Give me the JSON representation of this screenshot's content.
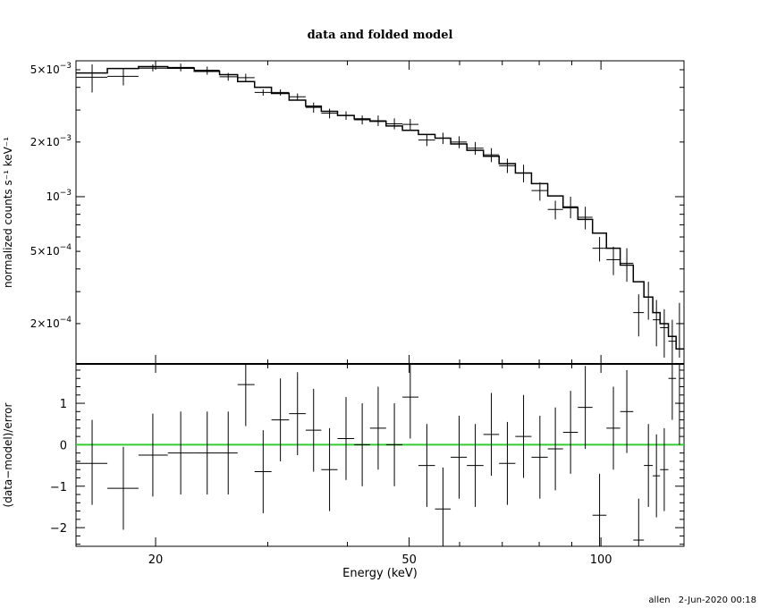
{
  "title": "data and folded model",
  "footer": {
    "user": "allen",
    "datetime": "2-Jun-2020 00:18"
  },
  "colors": {
    "data": "#000000",
    "model": "#000000",
    "zero_line": "#33cc33"
  },
  "chart_data": [
    {
      "type": "line",
      "panel": "top",
      "xscale": "log",
      "yscale": "log",
      "xlim": [
        15,
        135
      ],
      "ylim": [
        0.00012,
        0.0056
      ],
      "ylabel": "normalized counts s⁻¹ keV⁻¹",
      "yticks": [
        {
          "v": 0.005,
          "m": "5",
          "e": "−3"
        },
        {
          "v": 0.002,
          "m": "2",
          "e": "−3"
        },
        {
          "v": 0.001,
          "m": "",
          "e": "−3"
        },
        {
          "v": 0.0005,
          "m": "5",
          "e": "−4"
        },
        {
          "v": 0.0002,
          "m": "2",
          "e": "−4"
        }
      ],
      "series": [
        {
          "kind": "data",
          "points": [
            {
              "x": 15.9,
              "xl": 15.0,
              "xh": 16.8,
              "y": 0.00455,
              "yl": 0.00375,
              "yh": 0.00535
            },
            {
              "x": 17.8,
              "xl": 16.8,
              "xh": 18.8,
              "y": 0.0046,
              "yl": 0.0041,
              "yh": 0.0051
            },
            {
              "x": 19.8,
              "xl": 18.8,
              "xh": 20.9,
              "y": 0.0051,
              "yl": 0.0049,
              "yh": 0.00535
            },
            {
              "x": 21.9,
              "xl": 20.9,
              "xh": 23.0,
              "y": 0.00515,
              "yl": 0.0049,
              "yh": 0.0054
            },
            {
              "x": 24.1,
              "xl": 23.0,
              "xh": 25.2,
              "y": 0.00497,
              "yl": 0.0047,
              "yh": 0.0052
            },
            {
              "x": 26.0,
              "xl": 25.2,
              "xh": 26.9,
              "y": 0.00457,
              "yl": 0.00435,
              "yh": 0.0048
            },
            {
              "x": 27.7,
              "xl": 26.9,
              "xh": 28.6,
              "y": 0.00452,
              "yl": 0.0043,
              "yh": 0.00475
            },
            {
              "x": 29.5,
              "xl": 28.6,
              "xh": 30.4,
              "y": 0.00375,
              "yl": 0.0036,
              "yh": 0.0039
            },
            {
              "x": 31.4,
              "xl": 30.4,
              "xh": 32.4,
              "y": 0.00375,
              "yl": 0.0036,
              "yh": 0.0039
            },
            {
              "x": 33.4,
              "xl": 32.4,
              "xh": 34.4,
              "y": 0.00355,
              "yl": 0.0034,
              "yh": 0.0037
            },
            {
              "x": 35.4,
              "xl": 34.4,
              "xh": 36.4,
              "y": 0.0031,
              "yl": 0.0029,
              "yh": 0.0033
            },
            {
              "x": 37.5,
              "xl": 36.4,
              "xh": 38.6,
              "y": 0.00288,
              "yl": 0.0027,
              "yh": 0.00305
            },
            {
              "x": 39.8,
              "xl": 38.6,
              "xh": 41.0,
              "y": 0.0028,
              "yl": 0.00265,
              "yh": 0.00295
            },
            {
              "x": 42.2,
              "xl": 41.0,
              "xh": 43.4,
              "y": 0.00265,
              "yl": 0.0025,
              "yh": 0.0028
            },
            {
              "x": 44.7,
              "xl": 43.4,
              "xh": 46.0,
              "y": 0.00262,
              "yl": 0.00245,
              "yh": 0.0028
            },
            {
              "x": 47.4,
              "xl": 46.0,
              "xh": 48.8,
              "y": 0.00252,
              "yl": 0.00235,
              "yh": 0.0027
            },
            {
              "x": 50.2,
              "xl": 48.8,
              "xh": 51.7,
              "y": 0.0025,
              "yl": 0.00232,
              "yh": 0.00268
            },
            {
              "x": 53.3,
              "xl": 51.7,
              "xh": 54.9,
              "y": 0.00205,
              "yl": 0.0019,
              "yh": 0.0022
            },
            {
              "x": 56.5,
              "xl": 54.9,
              "xh": 58.1,
              "y": 0.0021,
              "yl": 0.00195,
              "yh": 0.00225
            },
            {
              "x": 59.9,
              "xl": 58.1,
              "xh": 61.6,
              "y": 0.002,
              "yl": 0.00185,
              "yh": 0.00215
            },
            {
              "x": 63.5,
              "xl": 61.6,
              "xh": 65.4,
              "y": 0.00185,
              "yl": 0.0017,
              "yh": 0.002
            },
            {
              "x": 67.3,
              "xl": 65.4,
              "xh": 69.2,
              "y": 0.0017,
              "yl": 0.00155,
              "yh": 0.00185
            },
            {
              "x": 71.3,
              "xl": 69.2,
              "xh": 73.4,
              "y": 0.00148,
              "yl": 0.00135,
              "yh": 0.00162
            },
            {
              "x": 75.6,
              "xl": 73.4,
              "xh": 77.8,
              "y": 0.00135,
              "yl": 0.0012,
              "yh": 0.0015
            },
            {
              "x": 80.2,
              "xl": 77.8,
              "xh": 82.5,
              "y": 0.00108,
              "yl": 0.00095,
              "yh": 0.0012
            },
            {
              "x": 84.8,
              "xl": 82.5,
              "xh": 87.2,
              "y": 0.00085,
              "yl": 0.00075,
              "yh": 0.00095
            },
            {
              "x": 89.6,
              "xl": 87.2,
              "xh": 92.0,
              "y": 0.00088,
              "yl": 0.00076,
              "yh": 0.001
            },
            {
              "x": 94.5,
              "xl": 92.0,
              "xh": 97.0,
              "y": 0.00077,
              "yl": 0.00066,
              "yh": 0.00088
            },
            {
              "x": 99.5,
              "xl": 97.0,
              "xh": 102.0,
              "y": 0.00052,
              "yl": 0.00044,
              "yh": 0.0006
            },
            {
              "x": 104.6,
              "xl": 102.0,
              "xh": 107.2,
              "y": 0.00045,
              "yl": 0.00037,
              "yh": 0.00053
            },
            {
              "x": 109.8,
              "xl": 107.2,
              "xh": 112.4,
              "y": 0.00043,
              "yl": 0.00034,
              "yh": 0.00052
            },
            {
              "x": 114.6,
              "xl": 112.4,
              "xh": 116.8,
              "y": 0.00023,
              "yl": 0.00017,
              "yh": 0.00029
            },
            {
              "x": 118.7,
              "xl": 116.8,
              "xh": 120.6,
              "y": 0.00028,
              "yl": 0.00021,
              "yh": 0.00034
            },
            {
              "x": 122.2,
              "xl": 120.6,
              "xh": 123.8,
              "y": 0.00021,
              "yl": 0.00015,
              "yh": 0.00027
            },
            {
              "x": 125.7,
              "xl": 123.8,
              "xh": 127.6,
              "y": 0.00019,
              "yl": 0.00013,
              "yh": 0.00024
            },
            {
              "x": 129.4,
              "xl": 127.6,
              "xh": 131.2,
              "y": 0.00016,
              "yl": 0.00012,
              "yh": 0.00021
            },
            {
              "x": 132.8,
              "xl": 131.2,
              "xh": 134.4,
              "y": 0.0002,
              "yl": 0.00013,
              "yh": 0.00026
            }
          ]
        },
        {
          "kind": "model",
          "steps": [
            {
              "x0": 15.0,
              "x1": 16.8,
              "y": 0.0048
            },
            {
              "x0": 16.8,
              "x1": 18.8,
              "y": 0.00508
            },
            {
              "x0": 18.8,
              "x1": 20.9,
              "y": 0.0052
            },
            {
              "x0": 20.9,
              "x1": 23.0,
              "y": 0.0051
            },
            {
              "x0": 23.0,
              "x1": 25.2,
              "y": 0.0049
            },
            {
              "x0": 25.2,
              "x1": 26.9,
              "y": 0.0047
            },
            {
              "x0": 26.9,
              "x1": 28.6,
              "y": 0.0043
            },
            {
              "x0": 28.6,
              "x1": 30.4,
              "y": 0.004
            },
            {
              "x0": 30.4,
              "x1": 32.4,
              "y": 0.0037
            },
            {
              "x0": 32.4,
              "x1": 34.4,
              "y": 0.0034
            },
            {
              "x0": 34.4,
              "x1": 36.4,
              "y": 0.00315
            },
            {
              "x0": 36.4,
              "x1": 38.6,
              "y": 0.00295
            },
            {
              "x0": 38.6,
              "x1": 41.0,
              "y": 0.0028
            },
            {
              "x0": 41.0,
              "x1": 43.4,
              "y": 0.00268
            },
            {
              "x0": 43.4,
              "x1": 46.0,
              "y": 0.0026
            },
            {
              "x0": 46.0,
              "x1": 48.8,
              "y": 0.00245
            },
            {
              "x0": 48.8,
              "x1": 51.7,
              "y": 0.00232
            },
            {
              "x0": 51.7,
              "x1": 54.9,
              "y": 0.0022
            },
            {
              "x0": 54.9,
              "x1": 58.1,
              "y": 0.0021
            },
            {
              "x0": 58.1,
              "x1": 61.6,
              "y": 0.00195
            },
            {
              "x0": 61.6,
              "x1": 65.4,
              "y": 0.0018
            },
            {
              "x0": 65.4,
              "x1": 69.2,
              "y": 0.00167
            },
            {
              "x0": 69.2,
              "x1": 73.4,
              "y": 0.00152
            },
            {
              "x0": 73.4,
              "x1": 77.8,
              "y": 0.00135
            },
            {
              "x0": 77.8,
              "x1": 82.5,
              "y": 0.00118
            },
            {
              "x0": 82.5,
              "x1": 87.2,
              "y": 0.00101
            },
            {
              "x0": 87.2,
              "x1": 92.0,
              "y": 0.00087
            },
            {
              "x0": 92.0,
              "x1": 97.0,
              "y": 0.00075
            },
            {
              "x0": 97.0,
              "x1": 102.0,
              "y": 0.00063
            },
            {
              "x0": 102.0,
              "x1": 107.2,
              "y": 0.00052
            },
            {
              "x0": 107.2,
              "x1": 112.4,
              "y": 0.00042
            },
            {
              "x0": 112.4,
              "x1": 116.8,
              "y": 0.00034
            },
            {
              "x0": 116.8,
              "x1": 120.6,
              "y": 0.00028
            },
            {
              "x0": 120.6,
              "x1": 123.8,
              "y": 0.00023
            },
            {
              "x0": 123.8,
              "x1": 127.6,
              "y": 0.0002
            },
            {
              "x0": 127.6,
              "x1": 131.2,
              "y": 0.00017
            },
            {
              "x0": 131.2,
              "x1": 135.0,
              "y": 0.000145
            }
          ]
        }
      ]
    },
    {
      "type": "scatter",
      "panel": "bottom",
      "xscale": "log",
      "xlim": [
        15,
        135
      ],
      "ylim": [
        -2.45,
        1.95
      ],
      "ylabel": "(data−model)/error",
      "xlabel": "Energy (keV)",
      "xticks": [
        {
          "v": 20,
          "label": "20"
        },
        {
          "v": 50,
          "label": "50"
        },
        {
          "v": 100,
          "label": "100"
        }
      ],
      "yticks": [
        {
          "v": 1,
          "label": "1"
        },
        {
          "v": 0,
          "label": "0"
        },
        {
          "v": -1,
          "label": "−1"
        },
        {
          "v": -2,
          "label": "−2"
        }
      ],
      "zero_line": 0,
      "series": [
        {
          "kind": "residuals",
          "points": [
            {
              "x": 15.9,
              "xl": 15.0,
              "xh": 16.8,
              "y": -0.45,
              "yl": -1.45,
              "yh": 0.6
            },
            {
              "x": 17.8,
              "xl": 16.8,
              "xh": 18.8,
              "y": -1.05,
              "yl": -2.05,
              "yh": -0.05
            },
            {
              "x": 19.8,
              "xl": 18.8,
              "xh": 20.9,
              "y": -0.25,
              "yl": -1.25,
              "yh": 0.75
            },
            {
              "x": 21.9,
              "xl": 20.9,
              "xh": 23.0,
              "y": -0.2,
              "yl": -1.2,
              "yh": 0.8
            },
            {
              "x": 24.1,
              "xl": 23.0,
              "xh": 25.2,
              "y": -0.2,
              "yl": -1.2,
              "yh": 0.8
            },
            {
              "x": 26.0,
              "xl": 25.2,
              "xh": 26.9,
              "y": -0.2,
              "yl": -1.2,
              "yh": 0.8
            },
            {
              "x": 27.7,
              "xl": 26.9,
              "xh": 28.6,
              "y": 1.45,
              "yl": 0.45,
              "yh": 2.45
            },
            {
              "x": 29.5,
              "xl": 28.6,
              "xh": 30.4,
              "y": -0.65,
              "yl": -1.65,
              "yh": 0.35
            },
            {
              "x": 31.4,
              "xl": 30.4,
              "xh": 32.4,
              "y": 0.6,
              "yl": -0.4,
              "yh": 1.6
            },
            {
              "x": 33.4,
              "xl": 32.4,
              "xh": 34.4,
              "y": 0.75,
              "yl": -0.25,
              "yh": 1.75
            },
            {
              "x": 35.4,
              "xl": 34.4,
              "xh": 36.4,
              "y": 0.35,
              "yl": -0.65,
              "yh": 1.35
            },
            {
              "x": 37.5,
              "xl": 36.4,
              "xh": 38.6,
              "y": -0.6,
              "yl": -1.6,
              "yh": 0.4
            },
            {
              "x": 39.8,
              "xl": 38.6,
              "xh": 41.0,
              "y": 0.15,
              "yl": -0.85,
              "yh": 1.15
            },
            {
              "x": 42.2,
              "xl": 41.0,
              "xh": 43.4,
              "y": 0.0,
              "yl": -1.0,
              "yh": 1.0
            },
            {
              "x": 44.7,
              "xl": 43.4,
              "xh": 46.0,
              "y": 0.4,
              "yl": -0.6,
              "yh": 1.4
            },
            {
              "x": 47.4,
              "xl": 46.0,
              "xh": 48.8,
              "y": 0.0,
              "yl": -1.0,
              "yh": 1.0
            },
            {
              "x": 50.2,
              "xl": 48.8,
              "xh": 51.7,
              "y": 1.15,
              "yl": 0.15,
              "yh": 2.15
            },
            {
              "x": 53.3,
              "xl": 51.7,
              "xh": 54.9,
              "y": -0.5,
              "yl": -1.5,
              "yh": 0.5
            },
            {
              "x": 56.5,
              "xl": 54.9,
              "xh": 58.1,
              "y": -1.55,
              "yl": -2.55,
              "yh": -0.55
            },
            {
              "x": 59.9,
              "xl": 58.1,
              "xh": 61.6,
              "y": -0.3,
              "yl": -1.3,
              "yh": 0.7
            },
            {
              "x": 63.5,
              "xl": 61.6,
              "xh": 65.4,
              "y": -0.5,
              "yl": -1.5,
              "yh": 0.5
            },
            {
              "x": 67.3,
              "xl": 65.4,
              "xh": 69.2,
              "y": 0.25,
              "yl": -0.75,
              "yh": 1.25
            },
            {
              "x": 71.3,
              "xl": 69.2,
              "xh": 73.4,
              "y": -0.45,
              "yl": -1.45,
              "yh": 0.55
            },
            {
              "x": 75.6,
              "xl": 73.4,
              "xh": 77.8,
              "y": 0.2,
              "yl": -0.8,
              "yh": 1.2
            },
            {
              "x": 80.2,
              "xl": 77.8,
              "xh": 82.5,
              "y": -0.3,
              "yl": -1.3,
              "yh": 0.7
            },
            {
              "x": 84.8,
              "xl": 82.5,
              "xh": 87.2,
              "y": -0.1,
              "yl": -1.1,
              "yh": 0.9
            },
            {
              "x": 89.6,
              "xl": 87.2,
              "xh": 92.0,
              "y": 0.3,
              "yl": -0.7,
              "yh": 1.3
            },
            {
              "x": 94.5,
              "xl": 92.0,
              "xh": 97.0,
              "y": 0.9,
              "yl": -0.1,
              "yh": 1.9
            },
            {
              "x": 99.5,
              "xl": 97.0,
              "xh": 102.0,
              "y": -1.7,
              "yl": -2.7,
              "yh": -0.7
            },
            {
              "x": 104.6,
              "xl": 102.0,
              "xh": 107.2,
              "y": 0.4,
              "yl": -0.6,
              "yh": 1.4
            },
            {
              "x": 109.8,
              "xl": 107.2,
              "xh": 112.4,
              "y": 0.8,
              "yl": -0.2,
              "yh": 1.8
            },
            {
              "x": 114.6,
              "xl": 112.4,
              "xh": 116.8,
              "y": -2.3,
              "yl": -3.3,
              "yh": -1.3
            },
            {
              "x": 118.7,
              "xl": 116.8,
              "xh": 120.6,
              "y": -0.5,
              "yl": -1.5,
              "yh": 0.5
            },
            {
              "x": 122.2,
              "xl": 120.6,
              "xh": 123.8,
              "y": -0.75,
              "yl": -1.75,
              "yh": 0.25
            },
            {
              "x": 125.7,
              "xl": 123.8,
              "xh": 127.6,
              "y": -0.6,
              "yl": -1.6,
              "yh": 0.4
            },
            {
              "x": 129.4,
              "xl": 127.6,
              "xh": 131.2,
              "y": 1.6,
              "yl": 0.6,
              "yh": 2.6
            },
            {
              "x": 132.8,
              "xl": 131.2,
              "xh": 134.4,
              "y": 1.0,
              "yl": 0.0,
              "yh": 2.0
            }
          ]
        }
      ]
    }
  ]
}
